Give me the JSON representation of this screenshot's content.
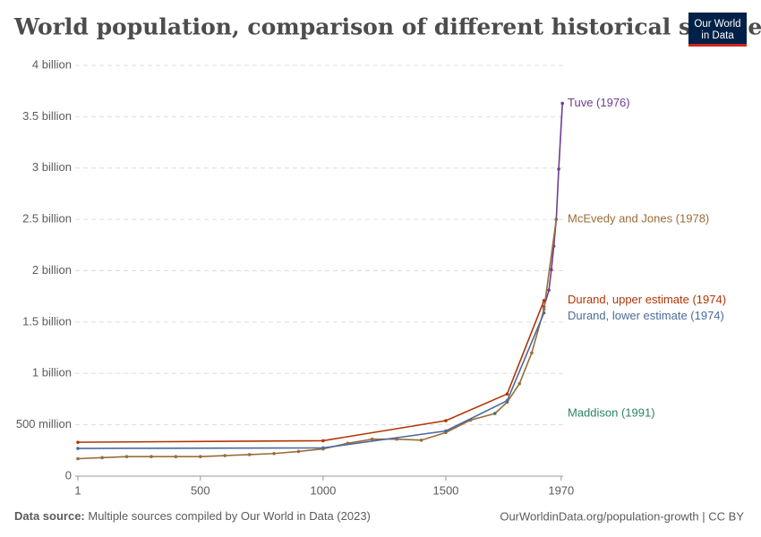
{
  "chart_data": {
    "type": "line",
    "title": "World population, comparison of different historical sources",
    "logo": [
      "Our World",
      "in Data"
    ],
    "source_label": "Data source:",
    "source": "Multiple sources compiled by Our World in Data (2023)",
    "url": "OurWorldinData.org/population-growth | CC BY",
    "xlim": [
      1,
      1978
    ],
    "xticks": [
      1,
      500,
      1000,
      1500,
      1970
    ],
    "ylim": [
      0,
      4000000000
    ],
    "yticks": [
      {
        "value": 0,
        "label": "0"
      },
      {
        "value": 500000000,
        "label": "500 million"
      },
      {
        "value": 1000000000,
        "label": "1 billion"
      },
      {
        "value": 1500000000,
        "label": "1.5 billion"
      },
      {
        "value": 2000000000,
        "label": "2 billion"
      },
      {
        "value": 2500000000,
        "label": "2.5 billion"
      },
      {
        "value": 3000000000,
        "label": "3 billion"
      },
      {
        "value": 3500000000,
        "label": "3.5 billion"
      },
      {
        "value": 4000000000,
        "label": "4 billion"
      }
    ],
    "grid": true,
    "series": [
      {
        "name": "Tuve (1976)",
        "color": "#6d3e91",
        "x": [
          1900,
          1920,
          1930,
          1940,
          1950,
          1960,
          1975
        ],
        "values": [
          1650000000,
          1810000000,
          2010000000,
          2240000000,
          2500000000,
          2990000000,
          3630000000
        ]
      },
      {
        "name": "McEvedy and Jones (1978)",
        "color": "#996d39",
        "x": [
          1,
          100,
          200,
          300,
          400,
          500,
          600,
          700,
          800,
          900,
          1000,
          1100,
          1200,
          1300,
          1400,
          1500,
          1600,
          1700,
          1750,
          1800,
          1850,
          1900,
          1950
        ],
        "values": [
          170000000,
          180000000,
          190000000,
          190000000,
          190000000,
          190000000,
          200000000,
          210000000,
          220000000,
          240000000,
          265000000,
          320000000,
          360000000,
          360000000,
          350000000,
          425000000,
          545000000,
          610000000,
          720000000,
          900000000,
          1200000000,
          1625000000,
          2500000000
        ]
      },
      {
        "name": "Durand, upper estimate (1974)",
        "color": "#b13507",
        "x": [
          1,
          1000,
          1500,
          1750,
          1900
        ],
        "values": [
          330000000,
          345000000,
          540000000,
          800000000,
          1710000000
        ]
      },
      {
        "name": "Durand, lower estimate (1974)",
        "color": "#4c6a9c",
        "x": [
          1,
          1000,
          1500,
          1750,
          1900
        ],
        "values": [
          270000000,
          275000000,
          440000000,
          735000000,
          1590000000
        ]
      },
      {
        "name": "Maddison (1991)",
        "color": "#2c8465",
        "x": [
          1700
        ],
        "values": [
          610000000
        ]
      }
    ]
  }
}
